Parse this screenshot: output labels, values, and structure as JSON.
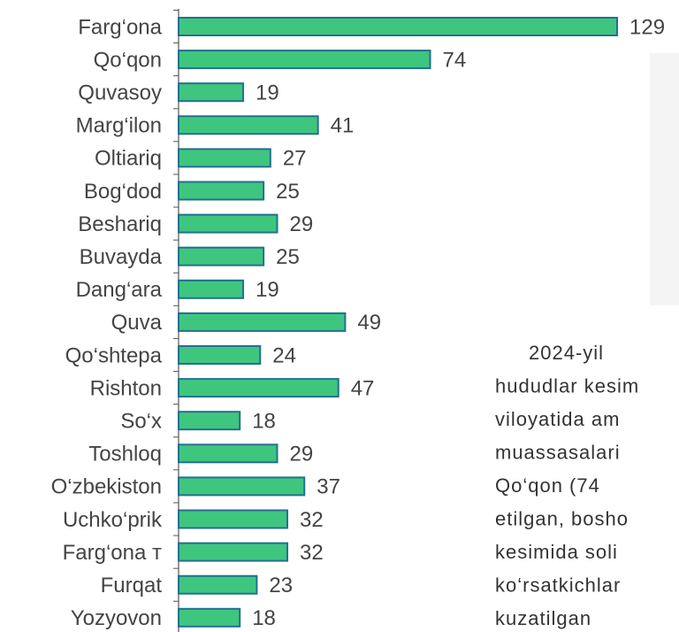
{
  "chart_data": {
    "type": "bar",
    "orientation": "horizontal",
    "categories": [
      "Farg‘ona",
      "Qo‘qon",
      "Quvasoy",
      "Marg‘ilon",
      "Oltiariq",
      "Bog‘dod",
      "Beshariq",
      "Buvayda",
      "Dang‘ara",
      "Quva",
      "Qo‘shtepa",
      "Rishton",
      "So‘x",
      "Toshloq",
      "O‘zbekiston",
      "Uchko‘prik",
      "Farg‘ona т",
      "Furqat",
      "Yozyovon"
    ],
    "values": [
      129,
      74,
      19,
      41,
      27,
      25,
      29,
      25,
      19,
      49,
      24,
      47,
      18,
      29,
      37,
      32,
      32,
      23,
      18
    ],
    "color": "#3ec67f",
    "edge_color": "#23708f",
    "annotations": [
      "2024-yil",
      "hududlar kesim",
      "viloyatida am",
      "muassasalari",
      "Qo‘qon (74",
      "etilgan, bosho",
      "kesimida soli",
      "ko‘rsatkichlar",
      "kuzatilgan"
    ]
  }
}
